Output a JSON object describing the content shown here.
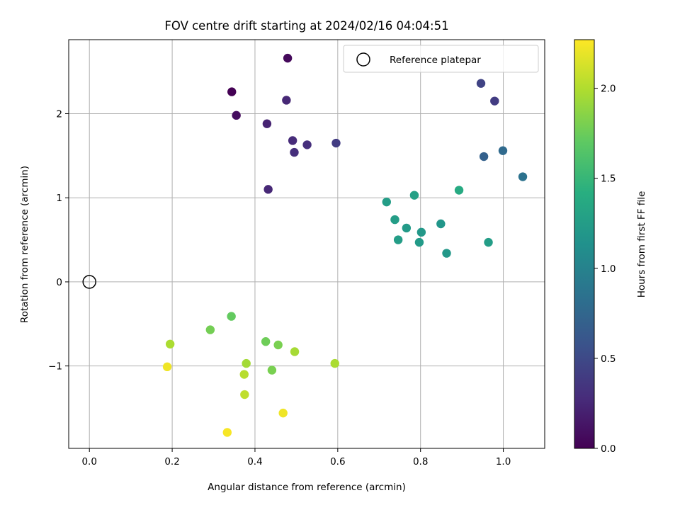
{
  "chart_data": {
    "type": "scatter",
    "title": "FOV centre drift starting at 2024/02/16 04:04:51",
    "xlabel": "Angular distance from reference (arcmin)",
    "ylabel": "Rotation from reference (arcmin)",
    "xlim": [
      -0.05,
      1.1
    ],
    "ylim": [
      -1.98,
      2.88
    ],
    "x_ticks": [
      0.0,
      0.2,
      0.4,
      0.6,
      0.8,
      1.0
    ],
    "x_tick_labels": [
      "0.0",
      "0.2",
      "0.4",
      "0.6",
      "0.8",
      "1.0"
    ],
    "y_ticks": [
      -1,
      0,
      1,
      2
    ],
    "y_tick_labels": [
      "−1",
      "0",
      "1",
      "2"
    ],
    "grid": true,
    "legend": {
      "label": "Reference platepar",
      "placement": "top-right"
    },
    "reference_point": {
      "x": 0.0,
      "y": 0.0
    },
    "colorbar": {
      "label": "Hours from first FF file",
      "colormap": "viridis",
      "range": [
        0.0,
        2.27
      ],
      "ticks": [
        0.0,
        0.5,
        1.0,
        1.5,
        2.0
      ],
      "tick_labels": [
        "0.0",
        "0.5",
        "1.0",
        "1.5",
        "2.0"
      ]
    },
    "points": [
      {
        "x": 0.479,
        "y": 2.66,
        "t": 0.05
      },
      {
        "x": 0.344,
        "y": 2.26,
        "t": 0.0
      },
      {
        "x": 0.355,
        "y": 1.98,
        "t": 0.08
      },
      {
        "x": 0.476,
        "y": 2.16,
        "t": 0.25
      },
      {
        "x": 0.429,
        "y": 1.88,
        "t": 0.22
      },
      {
        "x": 0.491,
        "y": 1.68,
        "t": 0.28
      },
      {
        "x": 0.495,
        "y": 1.54,
        "t": 0.3
      },
      {
        "x": 0.526,
        "y": 1.63,
        "t": 0.3
      },
      {
        "x": 0.596,
        "y": 1.65,
        "t": 0.4
      },
      {
        "x": 0.432,
        "y": 1.1,
        "t": 0.25
      },
      {
        "x": 0.946,
        "y": 2.36,
        "t": 0.45
      },
      {
        "x": 0.979,
        "y": 2.15,
        "t": 0.4
      },
      {
        "x": 0.953,
        "y": 1.49,
        "t": 0.7
      },
      {
        "x": 0.999,
        "y": 1.56,
        "t": 0.78
      },
      {
        "x": 1.047,
        "y": 1.25,
        "t": 0.85
      },
      {
        "x": 0.718,
        "y": 0.95,
        "t": 1.25
      },
      {
        "x": 0.785,
        "y": 1.03,
        "t": 1.28
      },
      {
        "x": 0.893,
        "y": 1.09,
        "t": 1.38
      },
      {
        "x": 0.738,
        "y": 0.74,
        "t": 1.25
      },
      {
        "x": 0.766,
        "y": 0.64,
        "t": 1.22
      },
      {
        "x": 0.849,
        "y": 0.69,
        "t": 1.18
      },
      {
        "x": 0.802,
        "y": 0.59,
        "t": 1.2
      },
      {
        "x": 0.746,
        "y": 0.5,
        "t": 1.25
      },
      {
        "x": 0.797,
        "y": 0.47,
        "t": 1.22
      },
      {
        "x": 0.863,
        "y": 0.34,
        "t": 1.2
      },
      {
        "x": 0.964,
        "y": 0.47,
        "t": 1.25
      },
      {
        "x": 0.343,
        "y": -0.41,
        "t": 1.72
      },
      {
        "x": 0.292,
        "y": -0.57,
        "t": 1.78
      },
      {
        "x": 0.426,
        "y": -0.71,
        "t": 1.76
      },
      {
        "x": 0.456,
        "y": -0.75,
        "t": 1.8
      },
      {
        "x": 0.195,
        "y": -0.74,
        "t": 1.98
      },
      {
        "x": 0.496,
        "y": -0.83,
        "t": 1.96
      },
      {
        "x": 0.379,
        "y": -0.97,
        "t": 1.95
      },
      {
        "x": 0.593,
        "y": -0.97,
        "t": 1.98
      },
      {
        "x": 0.188,
        "y": -1.01,
        "t": 2.22
      },
      {
        "x": 0.374,
        "y": -1.1,
        "t": 2.02
      },
      {
        "x": 0.441,
        "y": -1.05,
        "t": 1.8
      },
      {
        "x": 0.375,
        "y": -1.34,
        "t": 2.05
      },
      {
        "x": 0.468,
        "y": -1.56,
        "t": 2.22
      },
      {
        "x": 0.333,
        "y": -1.79,
        "t": 2.25
      }
    ]
  }
}
